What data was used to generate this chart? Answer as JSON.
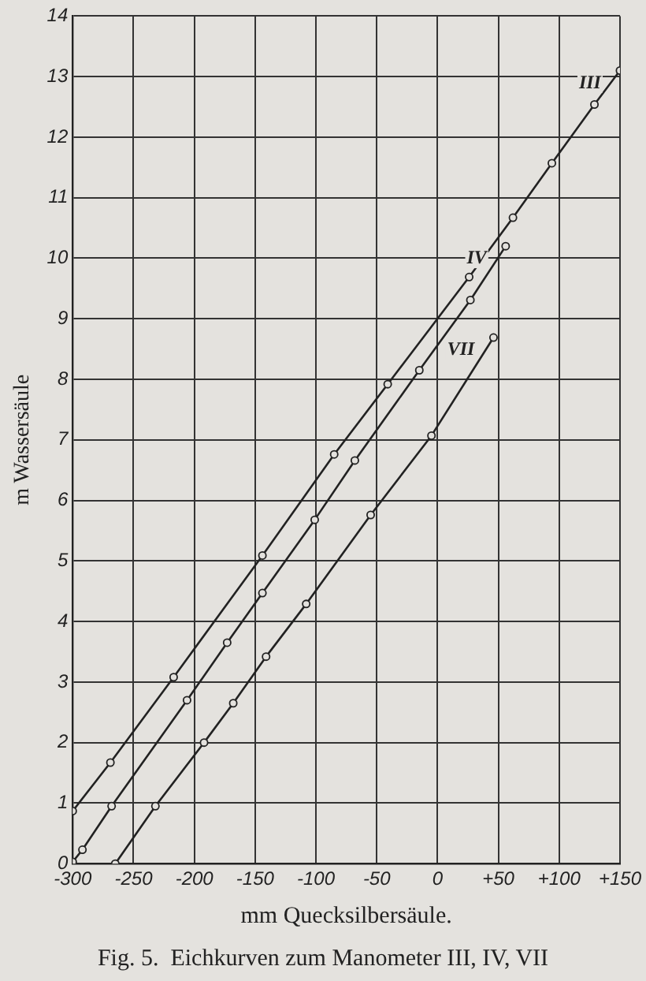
{
  "chart_data": {
    "type": "line",
    "xlabel": "mm Quecksilbersäule.",
    "ylabel": "m Wassersäule",
    "annotations": [
      "Fig. 5.  Eichkurven zum Manometer III, IV, VII"
    ],
    "xlim": [
      -300,
      150
    ],
    "ylim": [
      0,
      14
    ],
    "xticks": [
      {
        "value": -300,
        "label": "-300"
      },
      {
        "value": -250,
        "label": "-250"
      },
      {
        "value": -200,
        "label": "-200"
      },
      {
        "value": -150,
        "label": "-150"
      },
      {
        "value": -100,
        "label": "-100"
      },
      {
        "value": -50,
        "label": "-50"
      },
      {
        "value": 0,
        "label": "0"
      },
      {
        "value": 50,
        "label": "+50"
      },
      {
        "value": 100,
        "label": "+100"
      },
      {
        "value": 150,
        "label": "+150"
      }
    ],
    "yticks": [
      0,
      1,
      2,
      3,
      4,
      5,
      6,
      7,
      8,
      9,
      10,
      11,
      12,
      13,
      14
    ],
    "grid": true,
    "marker": "circle",
    "line_style": "solid",
    "series": [
      {
        "name": "III",
        "color": "#222222",
        "x": [
          -300,
          -269,
          -217,
          -144,
          -85,
          -41,
          26,
          62,
          94,
          129,
          150
        ],
        "values": [
          0.87,
          1.67,
          3.08,
          5.09,
          6.76,
          7.92,
          9.69,
          10.67,
          11.57,
          12.54,
          13.1
        ]
      },
      {
        "name": "IV",
        "color": "#222222",
        "x": [
          -300,
          -292,
          -268,
          -206,
          -173,
          -144,
          -101,
          -68,
          -15,
          27,
          56
        ],
        "values": [
          0.03,
          0.23,
          0.95,
          2.7,
          3.65,
          4.47,
          5.68,
          6.66,
          8.15,
          9.31,
          10.2
        ]
      },
      {
        "name": "VII",
        "color": "#222222",
        "x": [
          -265,
          -232,
          -192,
          -168,
          -141,
          -108,
          -55,
          -5,
          46
        ],
        "values": [
          0,
          0.95,
          2.0,
          2.65,
          3.42,
          4.29,
          5.76,
          7.07,
          8.69
        ]
      }
    ]
  }
}
